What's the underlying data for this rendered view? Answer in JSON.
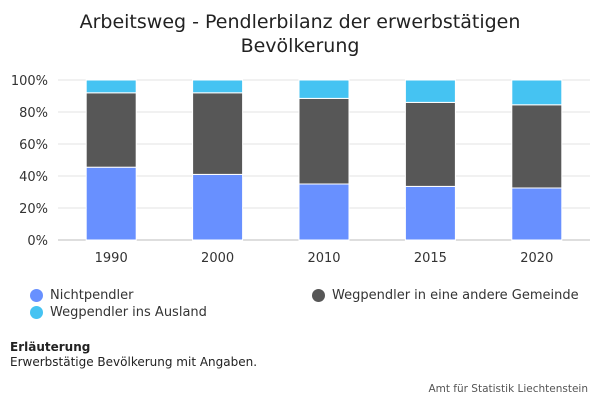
{
  "chart_data": {
    "type": "bar",
    "stacked": true,
    "title_lines": [
      "Arbeitsweg - Pendlerbilanz der erwerbstätigen",
      "Bevölkerung"
    ],
    "categories": [
      "1990",
      "2000",
      "2010",
      "2015",
      "2020"
    ],
    "series": [
      {
        "name": "Nichtpendler",
        "color": "#6890ff",
        "values": [
          45.5,
          41.0,
          35.0,
          33.5,
          32.5
        ]
      },
      {
        "name": "Wegpendler in eine andere Gemeinde",
        "color": "#575757",
        "values": [
          46.5,
          51.0,
          53.5,
          52.5,
          52.0
        ]
      },
      {
        "name": "Wegpendler ins Ausland",
        "color": "#45c3f2",
        "values": [
          8.0,
          8.0,
          11.5,
          14.0,
          15.5
        ]
      }
    ],
    "yticks": [
      "0%",
      "20%",
      "40%",
      "60%",
      "80%",
      "100%"
    ],
    "ylim": [
      0,
      100
    ],
    "grid": true,
    "legend_position": "bottom"
  },
  "note": {
    "title": "Erläuterung",
    "text": "Erwerbstätige Bevölkerung mit Angaben."
  },
  "source": "Amt für Statistik Liechtenstein"
}
